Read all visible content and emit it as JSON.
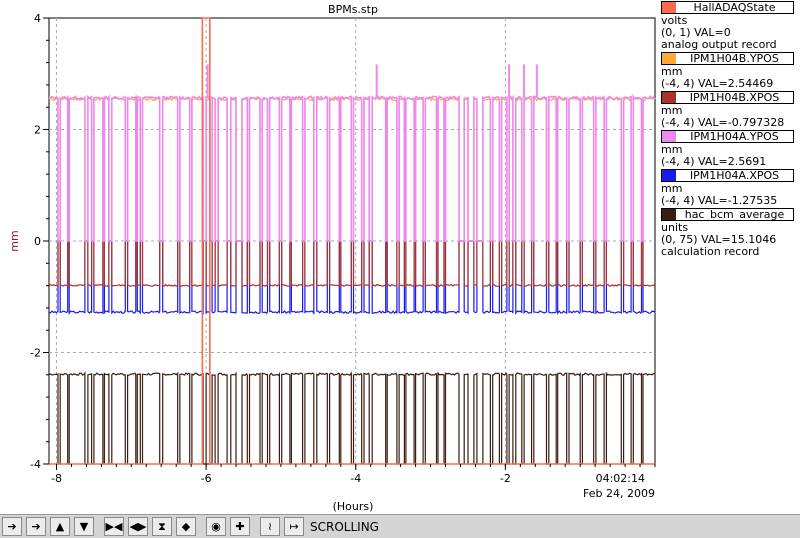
{
  "chart_data": {
    "type": "line",
    "title": "BPMs.stp",
    "xlabel": "(Hours)",
    "ylabel": "mm",
    "x_ticks": [
      "-8",
      "-6",
      "-4",
      "-2"
    ],
    "x_tick_values": [
      -8,
      -6,
      -4,
      -2
    ],
    "y_ticks": [
      "4",
      "2",
      "0",
      "-2",
      "-4"
    ],
    "y_tick_values": [
      4,
      2,
      0,
      -2,
      -4
    ],
    "xlim": [
      -8.1,
      0
    ],
    "ylim": [
      -4,
      4
    ],
    "grid": true,
    "time_label": "04:02:14",
    "date_label": "Feb 24, 2009",
    "legend_position": "right",
    "series": [
      {
        "name": "HallADAQState",
        "color": "#ff6a4d",
        "line1": "volts",
        "line2": "(0, 1) VAL=0",
        "line3": "analog output record",
        "range": [
          0,
          1
        ],
        "value": 0
      },
      {
        "name": "IPM1H04B.YPOS",
        "color": "#ffaa33",
        "line1": "mm",
        "line2": "(-4, 4) VAL=2.54469",
        "line3": "",
        "range": [
          -4,
          4
        ],
        "value": 2.54469
      },
      {
        "name": "IPM1H04B.XPOS",
        "color": "#a8342a",
        "line1": "mm",
        "line2": "(-4, 4) VAL=-0.797328",
        "line3": "",
        "range": [
          -4,
          4
        ],
        "value": -0.797328
      },
      {
        "name": "IPM1H04A.YPOS",
        "color": "#ee88ee",
        "line1": "mm",
        "line2": "(-4, 4) VAL=2.5691",
        "line3": "",
        "range": [
          -4,
          4
        ],
        "value": 2.5691
      },
      {
        "name": "IPM1H04A.XPOS",
        "color": "#1a1aee",
        "line1": "mm",
        "line2": "(-4, 4) VAL=-1.27535",
        "line3": "",
        "range": [
          -4,
          4
        ],
        "value": -1.27535
      },
      {
        "name": "hac_bcm_average",
        "color": "#3a1c10",
        "line1": "units",
        "line2": "(0, 75) VAL=15.1046",
        "line3": "calculation record",
        "range": [
          0,
          75
        ],
        "value": 15.1046
      }
    ],
    "beam_off_intervals": [
      [
        -7.98,
        -7.95
      ],
      [
        -7.85,
        -7.83
      ],
      [
        -7.62,
        -7.58
      ],
      [
        -7.53,
        -7.5
      ],
      [
        -7.38,
        -7.36
      ],
      [
        -7.3,
        -7.26
      ],
      [
        -7.08,
        -7.05
      ],
      [
        -6.94,
        -6.92
      ],
      [
        -6.88,
        -6.85
      ],
      [
        -6.62,
        -6.58
      ],
      [
        -6.38,
        -6.35
      ],
      [
        -6.22,
        -6.19
      ],
      [
        -6.04,
        -6.0
      ],
      [
        -5.95,
        -5.92
      ],
      [
        -5.88,
        -5.84
      ],
      [
        -5.72,
        -5.67
      ],
      [
        -5.6,
        -5.52
      ],
      [
        -5.45,
        -5.42
      ],
      [
        -5.28,
        -5.25
      ],
      [
        -5.18,
        -5.15
      ],
      [
        -5.02,
        -4.99
      ],
      [
        -4.88,
        -4.86
      ],
      [
        -4.71,
        -4.68
      ],
      [
        -4.56,
        -4.52
      ],
      [
        -4.38,
        -4.35
      ],
      [
        -4.22,
        -4.2
      ],
      [
        -4.06,
        -4.03
      ],
      [
        -3.92,
        -3.89
      ],
      [
        -3.82,
        -3.78
      ],
      [
        -3.6,
        -3.58
      ],
      [
        -3.45,
        -3.42
      ],
      [
        -3.35,
        -3.33
      ],
      [
        -3.22,
        -3.2
      ],
      [
        -3.1,
        -3.07
      ],
      [
        -2.92,
        -2.9
      ],
      [
        -2.82,
        -2.8
      ],
      [
        -2.62,
        -2.55
      ],
      [
        -2.5,
        -2.42
      ],
      [
        -2.38,
        -2.3
      ],
      [
        -2.2,
        -2.17
      ],
      [
        -2.08,
        -2.05
      ],
      [
        -1.98,
        -1.95
      ],
      [
        -1.9,
        -1.86
      ],
      [
        -1.78,
        -1.75
      ],
      [
        -1.65,
        -1.62
      ],
      [
        -1.45,
        -1.42
      ],
      [
        -1.32,
        -1.3
      ],
      [
        -1.18,
        -1.15
      ],
      [
        -1.0,
        -0.97
      ],
      [
        -0.82,
        -0.79
      ],
      [
        -0.68,
        -0.65
      ],
      [
        -0.45,
        -0.42
      ],
      [
        -0.32,
        -0.29
      ],
      [
        -0.18,
        -0.16
      ]
    ],
    "daq_spike_x": [
      -6.05,
      -5.95
    ],
    "ypos_events": [
      -5.98,
      -3.72,
      -1.95,
      -1.75,
      -1.58
    ]
  },
  "toolbar": {
    "status": "SCROLLING"
  }
}
